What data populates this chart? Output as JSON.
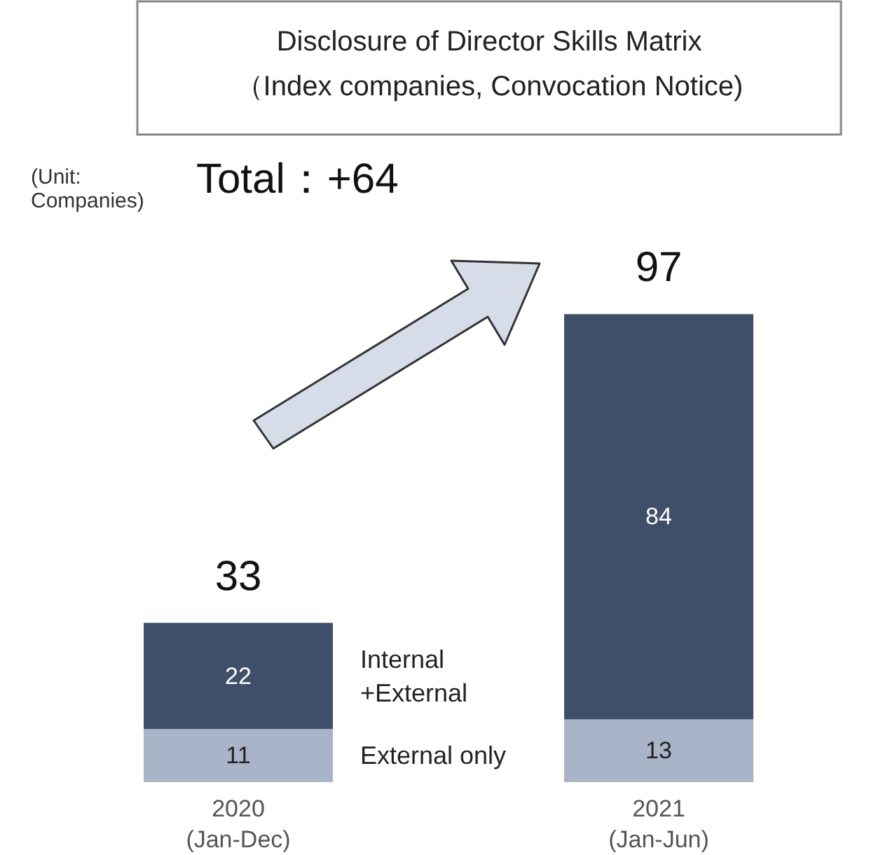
{
  "chart_data": {
    "type": "bar",
    "title": "Disclosure of Director Skills Matrix",
    "subtitle": "（Index companies, Convocation Notice)",
    "categories": [
      "2020\n(Jan-Dec)",
      "2021\n(Jan-Jun)"
    ],
    "stacked": true,
    "data_labels": true,
    "legend": false,
    "series": [
      {
        "name": "External only",
        "color": "#a9b4c8",
        "values": [
          11,
          13
        ]
      },
      {
        "name": "Internal +External",
        "color": "#3f4f69",
        "values": [
          22,
          84
        ]
      }
    ],
    "totals": [
      "33",
      "97"
    ],
    "annotations": [
      "(Unit:\nCompanies)",
      "Total：+64"
    ]
  }
}
